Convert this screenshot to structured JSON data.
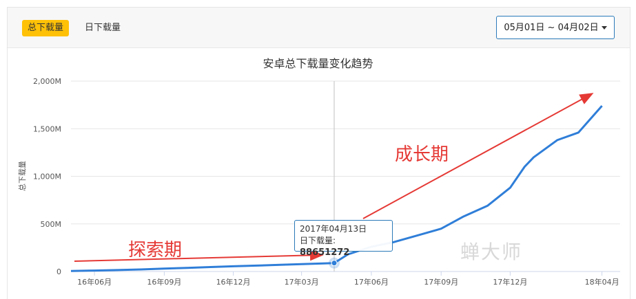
{
  "tabs": [
    {
      "label": "总下载量",
      "active": true
    },
    {
      "label": "日下载量",
      "active": false
    }
  ],
  "date_range": "05月01日 ~ 04月02日",
  "tooltip": {
    "date": "2017年04月13日",
    "label": "日下载量:",
    "value": "88651272"
  },
  "annotations": {
    "explore": "探索期",
    "growth": "成长期"
  },
  "watermark": "蝉大师",
  "colors": {
    "accent": "#ffc107",
    "line": "#2f7ed8",
    "arrow": "#e53935",
    "border": "#2a79b8"
  },
  "chart_data": {
    "type": "line",
    "title": "安卓总下载量变化趋势",
    "ylabel": "总下载量",
    "xlabel": "",
    "ylim": [
      0,
      2000
    ],
    "y_unit": "M",
    "y_ticks": [
      "0",
      "500M",
      "1,000M",
      "1,500M",
      "2,000M"
    ],
    "x_ticks": [
      "16年06月",
      "16年09月",
      "16年12月",
      "17年03月",
      "17年06月",
      "17年09月",
      "17年12月",
      "18年04月"
    ],
    "grid": true,
    "series": [
      {
        "values_note_free": true,
        "x": [
          "2016-05-01",
          "2016-06-01",
          "2016-07-01",
          "2016-08-01",
          "2016-09-01",
          "2016-10-01",
          "2016-11-01",
          "2016-12-01",
          "2017-01-01",
          "2017-02-01",
          "2017-03-01",
          "2017-04-13",
          "2017-05-01",
          "2017-06-01",
          "2017-07-01",
          "2017-08-01",
          "2017-09-01",
          "2017-10-01",
          "2017-11-01",
          "2017-12-01",
          "2017-12-20",
          "2018-01-01",
          "2018-02-01",
          "2018-03-01",
          "2018-04-01"
        ],
        "y": [
          5,
          10,
          15,
          22,
          30,
          38,
          47,
          55,
          62,
          70,
          78,
          89,
          180,
          260,
          310,
          380,
          450,
          580,
          690,
          880,
          1100,
          1200,
          1380,
          1460,
          1740
        ]
      }
    ],
    "highlight": {
      "x": "2017-04-13",
      "y": 89
    }
  }
}
